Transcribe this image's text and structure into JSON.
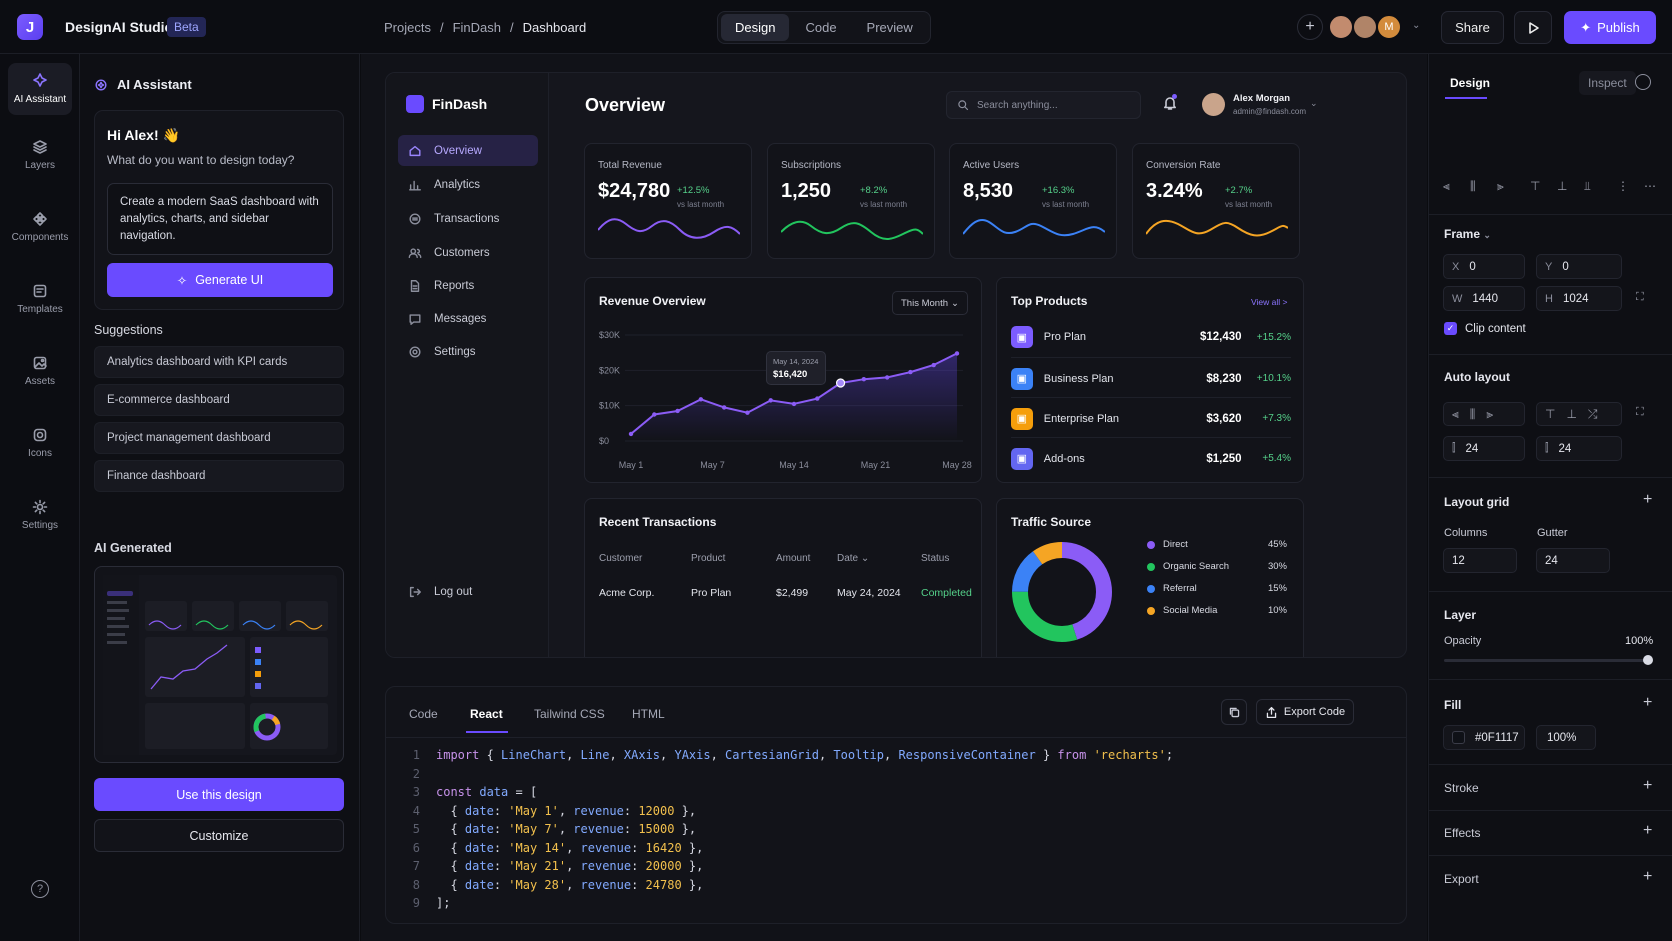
{
  "app": {
    "logo_letter": "J",
    "title": "DesignAI Studio",
    "badge": "Beta"
  },
  "breadcrumb": [
    "Projects",
    "/",
    "FinDash",
    "/",
    "Dashboard"
  ],
  "mode_tabs": [
    "Design",
    "Code",
    "Preview"
  ],
  "collaborator_initial": "M",
  "toolbar": {
    "share": "Share",
    "publish": "Publish"
  },
  "rail": [
    "AI Assistant",
    "Layers",
    "Components",
    "Templates",
    "Assets",
    "Icons",
    "Settings"
  ],
  "assistant": {
    "title": "AI Assistant",
    "greeting": "Hi Alex! 👋",
    "question": "What do you want to design today?",
    "prompt": "Create a modern SaaS dashboard with analytics, charts, and sidebar navigation.",
    "generate": "Generate UI",
    "suggestions_label": "Suggestions",
    "suggestions": [
      "Analytics dashboard with KPI cards",
      "E-commerce dashboard",
      "Project management dashboard",
      "Finance dashboard"
    ],
    "generated_label": "AI Generated",
    "use_design": "Use this design",
    "customize": "Customize"
  },
  "preview": {
    "brand": "FinDash",
    "nav": [
      "Overview",
      "Analytics",
      "Transactions",
      "Customers",
      "Reports",
      "Messages",
      "Settings"
    ],
    "logout": "Log out",
    "page_title": "Overview",
    "search_placeholder": "Search anything...",
    "user": {
      "name": "Alex Morgan",
      "email": "admin@findash.com"
    },
    "kpis": [
      {
        "label": "Total Revenue",
        "value": "$24,780",
        "change": "+12.5%",
        "sub": "vs last month",
        "color": "#8b5cf6"
      },
      {
        "label": "Subscriptions",
        "value": "1,250",
        "change": "+8.2%",
        "sub": "vs last month",
        "color": "#22c55e"
      },
      {
        "label": "Active Users",
        "value": "8,530",
        "change": "+16.3%",
        "sub": "vs last month",
        "color": "#3b82f6"
      },
      {
        "label": "Conversion Rate",
        "value": "3.24%",
        "change": "+2.7%",
        "sub": "vs last month",
        "color": "#f5a524"
      }
    ],
    "revenue": {
      "title": "Revenue Overview",
      "period": "This Month",
      "tooltip_date": "May 14, 2024",
      "tooltip_value": "$16,420"
    },
    "top_products": {
      "title": "Top Products",
      "view_all": "View all >",
      "items": [
        {
          "name": "Pro Plan",
          "value": "$12,430",
          "change": "+15.2%",
          "color": "#7c5cff"
        },
        {
          "name": "Business Plan",
          "value": "$8,230",
          "change": "+10.1%",
          "color": "#3b82f6"
        },
        {
          "name": "Enterprise Plan",
          "value": "$3,620",
          "change": "+7.3%",
          "color": "#f59e0b"
        },
        {
          "name": "Add-ons",
          "value": "$1,250",
          "change": "+5.4%",
          "color": "#6366f1"
        }
      ]
    },
    "transactions": {
      "title": "Recent Transactions",
      "headers": [
        "Customer",
        "Product",
        "Amount",
        "Date ⌄",
        "Status"
      ],
      "row": [
        "Acme Corp.",
        "Pro Plan",
        "$2,499",
        "May 24, 2024",
        "Completed"
      ]
    },
    "traffic": {
      "title": "Traffic Source",
      "items": [
        {
          "label": "Direct",
          "pct": "45%",
          "value": 45,
          "color": "#8b5cf6"
        },
        {
          "label": "Organic Search",
          "pct": "30%",
          "value": 30,
          "color": "#22c55e"
        },
        {
          "label": "Referral",
          "pct": "15%",
          "value": 15,
          "color": "#3b82f6"
        },
        {
          "label": "Social Media",
          "pct": "10%",
          "value": 10,
          "color": "#f5a524"
        }
      ]
    }
  },
  "chart_data": {
    "type": "line",
    "title": "Revenue Overview",
    "x": [
      "May 1",
      "May 7",
      "May 14",
      "May 21",
      "May 28"
    ],
    "y_ticks": [
      "$0",
      "$10K",
      "$20K",
      "$30K"
    ],
    "ylim": [
      0,
      30000
    ],
    "points": [
      [
        1,
        2000
      ],
      [
        2,
        7500
      ],
      [
        3,
        8500
      ],
      [
        4,
        11800
      ],
      [
        5,
        9500
      ],
      [
        6,
        8000
      ],
      [
        7,
        11500
      ],
      [
        8,
        10500
      ],
      [
        9,
        12000
      ],
      [
        10,
        16420
      ],
      [
        11,
        17500
      ],
      [
        12,
        18000
      ],
      [
        13,
        19500
      ],
      [
        14,
        21500
      ],
      [
        15,
        24780
      ]
    ],
    "grid": true,
    "legend": "none"
  },
  "code": {
    "tabs": [
      "Code",
      "React",
      "Tailwind CSS",
      "HTML"
    ],
    "export": "Export Code",
    "lines": [
      "import { LineChart, Line, XAxis, YAxis, CartesianGrid, Tooltip, ResponsiveContainer } from 'recharts';",
      "",
      "const data = [",
      "  { date: 'May 1', revenue: 12000 },",
      "  { date: 'May 7', revenue: 15000 },",
      "  { date: 'May 14', revenue: 16420 },",
      "  { date: 'May 21', revenue: 20000 },",
      "  { date: 'May 28', revenue: 24780 },",
      "];"
    ]
  },
  "properties": {
    "tabs": [
      "Design",
      "Inspect"
    ],
    "frame": {
      "label": "Frame",
      "x": "0",
      "y": "0",
      "w": "1440",
      "h": "1024",
      "clip": "Clip content"
    },
    "auto_layout": {
      "label": "Auto layout",
      "gap": "24",
      "padding": "24"
    },
    "layout_grid": {
      "label": "Layout grid",
      "columns_label": "Columns",
      "columns": "12",
      "gutter_label": "Gutter",
      "gutter": "24"
    },
    "layer": {
      "label": "Layer",
      "opacity_label": "Opacity",
      "opacity": "100%"
    },
    "fill": {
      "label": "Fill",
      "hex": "#0F1117",
      "opacity": "100%"
    },
    "stroke": "Stroke",
    "effects": "Effects",
    "export": "Export"
  }
}
